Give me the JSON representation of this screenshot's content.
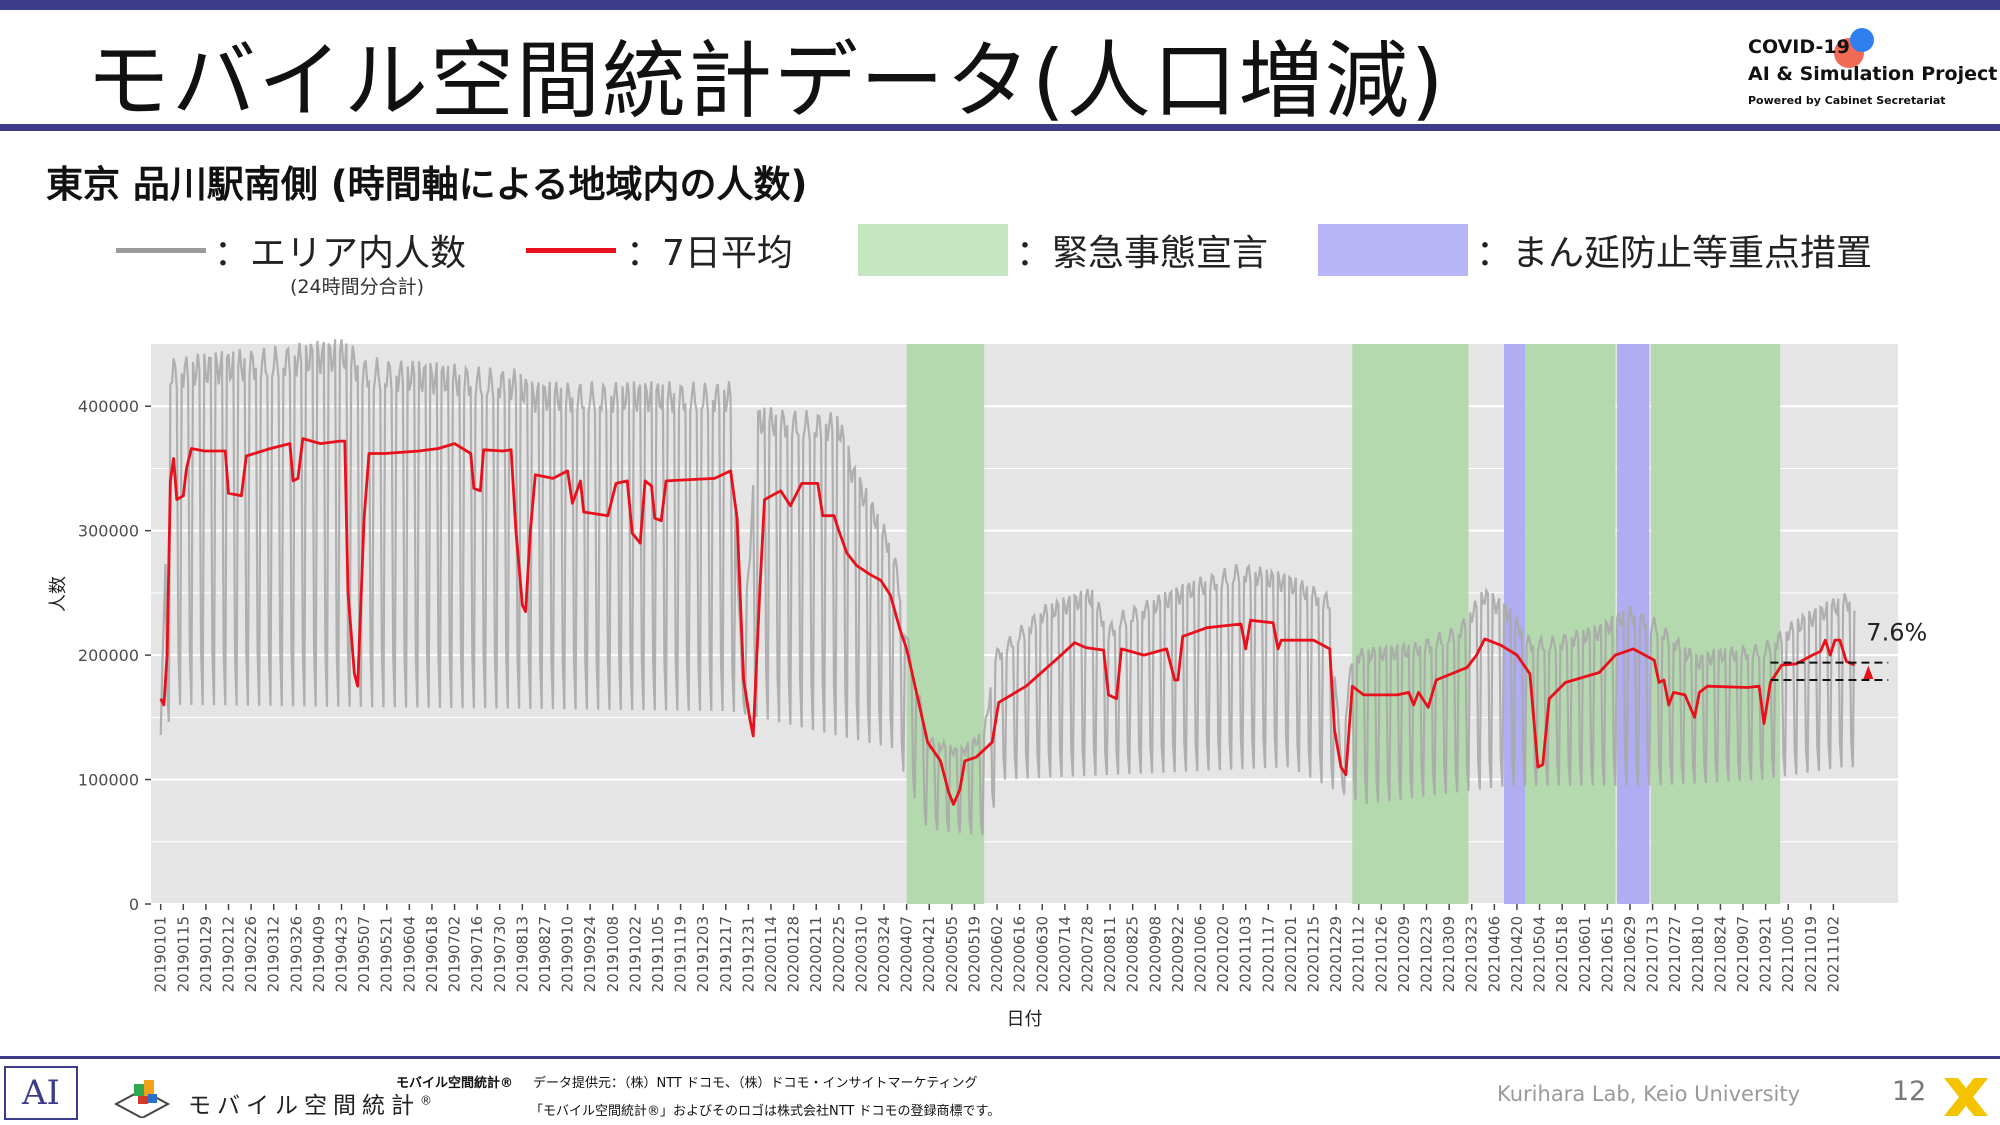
{
  "header": {
    "title": "モバイル空間統計データ(人口増減)",
    "logo_line1": "COVID-19",
    "logo_line2": "AI & Simulation Project",
    "logo_line3": "Powered by Cabinet Secretariat"
  },
  "subtitle": "東京 品川駅南側 (時間軸による地域内の人数)",
  "legend": {
    "area": "：エリア内人数",
    "area_note": "(24時間分合計)",
    "avg": "：7日平均",
    "emergency": "：緊急事態宣言",
    "manen": "：まん延防止等重点措置"
  },
  "colors": {
    "daily": "#a9a9a9",
    "avg": "#e8101a",
    "emergency": "#b2d8ac",
    "manen": "#adaaf2",
    "panel": "#e5e5e5",
    "grid": "#ffffff"
  },
  "chart_data": {
    "type": "line",
    "xlabel": "日付",
    "ylabel": "人数",
    "ylim": [
      0,
      450000
    ],
    "yticks": [
      0,
      100000,
      200000,
      300000,
      400000
    ],
    "ytick_labels": [
      "0",
      "100000",
      "200000",
      "300000",
      "400000"
    ],
    "x_range": [
      "2018-12-26",
      "2021-12-12"
    ],
    "xtick_labels": [
      "20190101",
      "20190115",
      "20190129",
      "20190212",
      "20190226",
      "20190312",
      "20190326",
      "20190409",
      "20190423",
      "20190507",
      "20190521",
      "20190604",
      "20190618",
      "20190702",
      "20190716",
      "20190730",
      "20190813",
      "20190827",
      "20190910",
      "20190924",
      "20191008",
      "20191022",
      "20191105",
      "20191119",
      "20191203",
      "20191217",
      "20191231",
      "20200114",
      "20200128",
      "20200211",
      "20200225",
      "20200310",
      "20200324",
      "20200407",
      "20200421",
      "20200505",
      "20200519",
      "20200602",
      "20200616",
      "20200630",
      "20200714",
      "20200728",
      "20200811",
      "20200825",
      "20200908",
      "20200922",
      "20201006",
      "20201020",
      "20201103",
      "20201117",
      "20201201",
      "20201215",
      "20201229",
      "20210112",
      "20210126",
      "20210209",
      "20210223",
      "20210309",
      "20210323",
      "20210406",
      "20210420",
      "20210504",
      "20210518",
      "20210601",
      "20210615",
      "20210629",
      "20210713",
      "20210727",
      "20210810",
      "20210824",
      "20210907",
      "20210921",
      "20211005",
      "20211019",
      "20211102"
    ],
    "shaded_periods": [
      {
        "type": "emergency",
        "start": "2020-04-07",
        "end": "2020-05-25"
      },
      {
        "type": "emergency",
        "start": "2021-01-08",
        "end": "2021-03-21"
      },
      {
        "type": "manen",
        "start": "2021-04-12",
        "end": "2021-04-25"
      },
      {
        "type": "emergency",
        "start": "2021-04-25",
        "end": "2021-06-20"
      },
      {
        "type": "manen",
        "start": "2021-06-21",
        "end": "2021-07-11"
      },
      {
        "type": "emergency",
        "start": "2021-07-12",
        "end": "2021-09-30"
      }
    ],
    "series": [
      {
        "name": "エリア内人数",
        "style": "daily",
        "pattern": "weekday peak / weekend trough, sampled daily",
        "weekday_peak_knots": [
          [
            "2019-01-01",
            140000
          ],
          [
            "2019-01-07",
            440000
          ],
          [
            "2019-04-26",
            455000
          ],
          [
            "2019-05-07",
            440000
          ],
          [
            "2019-08-10",
            430000
          ],
          [
            "2019-08-19",
            420000
          ],
          [
            "2019-12-20",
            420000
          ],
          [
            "2019-12-27",
            190000
          ],
          [
            "2020-01-06",
            400000
          ],
          [
            "2020-02-25",
            395000
          ],
          [
            "2020-03-05",
            355000
          ],
          [
            "2020-03-30",
            290000
          ],
          [
            "2020-04-07",
            220000
          ],
          [
            "2020-04-20",
            135000
          ],
          [
            "2020-05-10",
            125000
          ],
          [
            "2020-05-25",
            140000
          ],
          [
            "2020-06-01",
            205000
          ],
          [
            "2020-06-30",
            240000
          ],
          [
            "2020-07-31",
            255000
          ],
          [
            "2020-08-10",
            225000
          ],
          [
            "2020-08-17",
            235000
          ],
          [
            "2020-09-30",
            260000
          ],
          [
            "2020-10-31",
            275000
          ],
          [
            "2020-11-30",
            265000
          ],
          [
            "2020-12-25",
            250000
          ],
          [
            "2021-01-01",
            120000
          ],
          [
            "2021-01-08",
            205000
          ],
          [
            "2021-02-15",
            210000
          ],
          [
            "2021-03-15",
            225000
          ],
          [
            "2021-03-31",
            255000
          ],
          [
            "2021-04-15",
            240000
          ],
          [
            "2021-04-28",
            215000
          ],
          [
            "2021-05-10",
            215000
          ],
          [
            "2021-06-10",
            225000
          ],
          [
            "2021-06-28",
            240000
          ],
          [
            "2021-07-15",
            230000
          ],
          [
            "2021-08-10",
            200000
          ],
          [
            "2021-08-20",
            205000
          ],
          [
            "2021-09-20",
            210000
          ],
          [
            "2021-10-10",
            230000
          ],
          [
            "2021-11-08",
            250000
          ]
        ],
        "weekend_trough_knots": [
          [
            "2019-01-01",
            135000
          ],
          [
            "2019-01-12",
            160000
          ],
          [
            "2019-12-20",
            155000
          ],
          [
            "2020-03-30",
            125000
          ],
          [
            "2020-04-20",
            60000
          ],
          [
            "2020-05-25",
            55000
          ],
          [
            "2020-06-06",
            100000
          ],
          [
            "2020-11-30",
            110000
          ],
          [
            "2021-01-15",
            80000
          ],
          [
            "2021-04-15",
            95000
          ],
          [
            "2021-07-15",
            95000
          ],
          [
            "2021-09-20",
            100000
          ],
          [
            "2021-11-08",
            110000
          ]
        ]
      },
      {
        "name": "7日平均",
        "style": "avg",
        "points": [
          [
            "2019-01-01",
            165000
          ],
          [
            "2019-01-03",
            160000
          ],
          [
            "2019-01-05",
            200000
          ],
          [
            "2019-01-07",
            340000
          ],
          [
            "2019-01-09",
            358000
          ],
          [
            "2019-01-11",
            325000
          ],
          [
            "2019-01-15",
            328000
          ],
          [
            "2019-01-17",
            350000
          ],
          [
            "2019-01-20",
            366000
          ],
          [
            "2019-01-28",
            364000
          ],
          [
            "2019-02-10",
            364000
          ],
          [
            "2019-02-12",
            330000
          ],
          [
            "2019-02-20",
            328000
          ],
          [
            "2019-02-23",
            360000
          ],
          [
            "2019-03-10",
            366000
          ],
          [
            "2019-03-22",
            370000
          ],
          [
            "2019-03-24",
            340000
          ],
          [
            "2019-03-27",
            342000
          ],
          [
            "2019-03-30",
            374000
          ],
          [
            "2019-04-10",
            370000
          ],
          [
            "2019-04-22",
            372000
          ],
          [
            "2019-04-25",
            372000
          ],
          [
            "2019-04-27",
            250000
          ],
          [
            "2019-05-01",
            185000
          ],
          [
            "2019-05-03",
            175000
          ],
          [
            "2019-05-07",
            310000
          ],
          [
            "2019-05-10",
            362000
          ],
          [
            "2019-05-20",
            362000
          ],
          [
            "2019-06-10",
            364000
          ],
          [
            "2019-06-22",
            366000
          ],
          [
            "2019-07-02",
            370000
          ],
          [
            "2019-07-12",
            362000
          ],
          [
            "2019-07-14",
            334000
          ],
          [
            "2019-07-18",
            332000
          ],
          [
            "2019-07-20",
            365000
          ],
          [
            "2019-08-01",
            364000
          ],
          [
            "2019-08-06",
            365000
          ],
          [
            "2019-08-09",
            300000
          ],
          [
            "2019-08-13",
            240000
          ],
          [
            "2019-08-15",
            235000
          ],
          [
            "2019-08-18",
            300000
          ],
          [
            "2019-08-21",
            345000
          ],
          [
            "2019-09-01",
            342000
          ],
          [
            "2019-09-10",
            348000
          ],
          [
            "2019-09-13",
            322000
          ],
          [
            "2019-09-18",
            340000
          ],
          [
            "2019-09-20",
            315000
          ],
          [
            "2019-10-05",
            312000
          ],
          [
            "2019-10-10",
            338000
          ],
          [
            "2019-10-17",
            340000
          ],
          [
            "2019-10-20",
            298000
          ],
          [
            "2019-10-25",
            290000
          ],
          [
            "2019-10-28",
            340000
          ],
          [
            "2019-11-01",
            336000
          ],
          [
            "2019-11-03",
            310000
          ],
          [
            "2019-11-07",
            308000
          ],
          [
            "2019-11-10",
            340000
          ],
          [
            "2019-12-10",
            342000
          ],
          [
            "2019-12-20",
            348000
          ],
          [
            "2019-12-24",
            310000
          ],
          [
            "2019-12-28",
            180000
          ],
          [
            "2020-01-01",
            148000
          ],
          [
            "2020-01-03",
            135000
          ],
          [
            "2020-01-07",
            250000
          ],
          [
            "2020-01-10",
            325000
          ],
          [
            "2020-01-20",
            332000
          ],
          [
            "2020-01-26",
            320000
          ],
          [
            "2020-02-02",
            338000
          ],
          [
            "2020-02-12",
            338000
          ],
          [
            "2020-02-15",
            312000
          ],
          [
            "2020-02-22",
            312000
          ],
          [
            "2020-02-25",
            300000
          ],
          [
            "2020-03-01",
            282000
          ],
          [
            "2020-03-07",
            272000
          ],
          [
            "2020-03-15",
            265000
          ],
          [
            "2020-03-22",
            260000
          ],
          [
            "2020-03-28",
            248000
          ],
          [
            "2020-04-03",
            220000
          ],
          [
            "2020-04-07",
            205000
          ],
          [
            "2020-04-14",
            165000
          ],
          [
            "2020-04-20",
            130000
          ],
          [
            "2020-04-28",
            115000
          ],
          [
            "2020-05-03",
            90000
          ],
          [
            "2020-05-06",
            80000
          ],
          [
            "2020-05-10",
            92000
          ],
          [
            "2020-05-13",
            115000
          ],
          [
            "2020-05-20",
            118000
          ],
          [
            "2020-05-30",
            130000
          ],
          [
            "2020-06-03",
            162000
          ],
          [
            "2020-06-20",
            175000
          ],
          [
            "2020-07-10",
            198000
          ],
          [
            "2020-07-20",
            210000
          ],
          [
            "2020-07-27",
            206000
          ],
          [
            "2020-08-07",
            204000
          ],
          [
            "2020-08-10",
            168000
          ],
          [
            "2020-08-15",
            165000
          ],
          [
            "2020-08-18",
            205000
          ],
          [
            "2020-09-01",
            200000
          ],
          [
            "2020-09-15",
            205000
          ],
          [
            "2020-09-20",
            180000
          ],
          [
            "2020-09-22",
            180000
          ],
          [
            "2020-09-25",
            215000
          ],
          [
            "2020-10-10",
            222000
          ],
          [
            "2020-10-31",
            225000
          ],
          [
            "2020-11-03",
            205000
          ],
          [
            "2020-11-06",
            228000
          ],
          [
            "2020-11-20",
            226000
          ],
          [
            "2020-11-23",
            205000
          ],
          [
            "2020-11-25",
            212000
          ],
          [
            "2020-12-15",
            212000
          ],
          [
            "2020-12-25",
            205000
          ],
          [
            "2020-12-28",
            140000
          ],
          [
            "2021-01-01",
            110000
          ],
          [
            "2021-01-04",
            104000
          ],
          [
            "2021-01-08",
            175000
          ],
          [
            "2021-01-15",
            168000
          ],
          [
            "2021-02-05",
            168000
          ],
          [
            "2021-02-12",
            170000
          ],
          [
            "2021-02-15",
            160000
          ],
          [
            "2021-02-18",
            170000
          ],
          [
            "2021-02-24",
            158000
          ],
          [
            "2021-03-01",
            180000
          ],
          [
            "2021-03-20",
            190000
          ],
          [
            "2021-03-26",
            200000
          ],
          [
            "2021-03-31",
            213000
          ],
          [
            "2021-04-10",
            208000
          ],
          [
            "2021-04-20",
            200000
          ],
          [
            "2021-04-28",
            185000
          ],
          [
            "2021-05-03",
            110000
          ],
          [
            "2021-05-06",
            112000
          ],
          [
            "2021-05-10",
            165000
          ],
          [
            "2021-05-20",
            178000
          ],
          [
            "2021-06-10",
            186000
          ],
          [
            "2021-06-20",
            200000
          ],
          [
            "2021-07-01",
            205000
          ],
          [
            "2021-07-14",
            196000
          ],
          [
            "2021-07-17",
            178000
          ],
          [
            "2021-07-20",
            180000
          ],
          [
            "2021-07-23",
            160000
          ],
          [
            "2021-07-26",
            170000
          ],
          [
            "2021-08-02",
            168000
          ],
          [
            "2021-08-08",
            150000
          ],
          [
            "2021-08-11",
            170000
          ],
          [
            "2021-08-16",
            175000
          ],
          [
            "2021-09-10",
            174000
          ],
          [
            "2021-09-17",
            175000
          ],
          [
            "2021-09-20",
            145000
          ],
          [
            "2021-09-24",
            178000
          ],
          [
            "2021-10-01",
            192000
          ],
          [
            "2021-10-10",
            193000
          ],
          [
            "2021-10-20",
            200000
          ],
          [
            "2021-10-25",
            203000
          ],
          [
            "2021-10-28",
            212000
          ],
          [
            "2021-10-31",
            200000
          ],
          [
            "2021-11-03",
            212000
          ],
          [
            "2021-11-06",
            212000
          ],
          [
            "2021-11-10",
            195000
          ],
          [
            "2021-11-15",
            192000
          ]
        ]
      }
    ],
    "annotation": {
      "label": "7.6%",
      "upper_value": 194000,
      "lower_value": 180000,
      "from_date": "2021-09-24",
      "to_date": "2021-12-06"
    }
  },
  "footer": {
    "ai_mark": "AI",
    "brand": "モバイル空間統計",
    "brand_mark": "®",
    "text1": "モバイル空間統計®",
    "text2": "データ提供元：（株）NTT ドコモ、（株）ドコモ・インサイトマーケティング",
    "text3": "「モバイル空間統計®」およびそのロゴは株式会社NTT ドコモの登録商標です。",
    "lab": "Kurihara Lab, Keio University",
    "page": "12"
  }
}
